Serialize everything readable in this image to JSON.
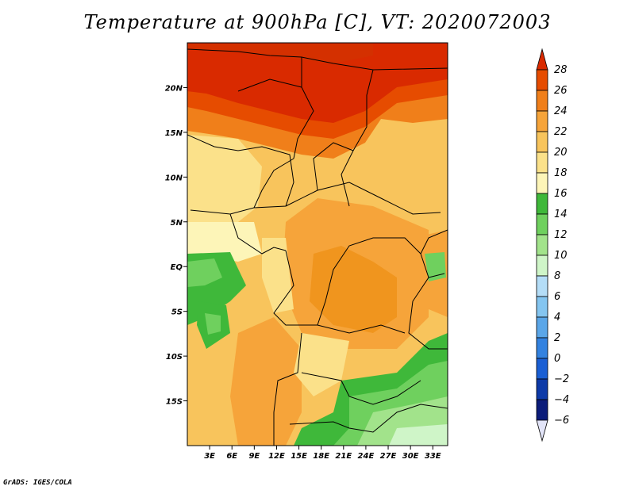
{
  "title": "Temperature at 900hPa [C], VT: 2020072003",
  "credit": "GrADS: IGES/COLA",
  "map": {
    "lon_range": [
      0,
      35
    ],
    "lat_range": [
      -20,
      25
    ],
    "lat_ticks": [
      {
        "value": 20,
        "label": "20N"
      },
      {
        "value": 15,
        "label": "15N"
      },
      {
        "value": 10,
        "label": "10N"
      },
      {
        "value": 5,
        "label": "5N"
      },
      {
        "value": 0,
        "label": "EQ"
      },
      {
        "value": -5,
        "label": "5S"
      },
      {
        "value": -10,
        "label": "10S"
      },
      {
        "value": -15,
        "label": "15S"
      }
    ],
    "lon_ticks": [
      {
        "value": 3,
        "label": "3E"
      },
      {
        "value": 6,
        "label": "6E"
      },
      {
        "value": 9,
        "label": "9E"
      },
      {
        "value": 12,
        "label": "12E"
      },
      {
        "value": 15,
        "label": "15E"
      },
      {
        "value": 18,
        "label": "18E"
      },
      {
        "value": 21,
        "label": "21E"
      },
      {
        "value": 24,
        "label": "24E"
      },
      {
        "value": 27,
        "label": "27E"
      },
      {
        "value": 30,
        "label": "30E"
      },
      {
        "value": 33,
        "label": "33E"
      }
    ]
  },
  "colorbar": {
    "levels": [
      "28",
      "26",
      "24",
      "22",
      "20",
      "18",
      "16",
      "14",
      "12",
      "10",
      "8",
      "6",
      "4",
      "2",
      "0",
      "−2",
      "−4",
      "−6"
    ],
    "colors": [
      "#d92a00",
      "#e64c00",
      "#f07f1a",
      "#f6a43a",
      "#f8c45c",
      "#fbe18a",
      "#fdf5b8",
      "#3fb83a",
      "#6fd05e",
      "#a2e38b",
      "#cff5c8",
      "#b4ddf7",
      "#84c5f0",
      "#5aa6e8",
      "#3382e0",
      "#1a5fd4",
      "#0d3aa8",
      "#0b1c7a",
      "#e2e4f8"
    ]
  }
}
